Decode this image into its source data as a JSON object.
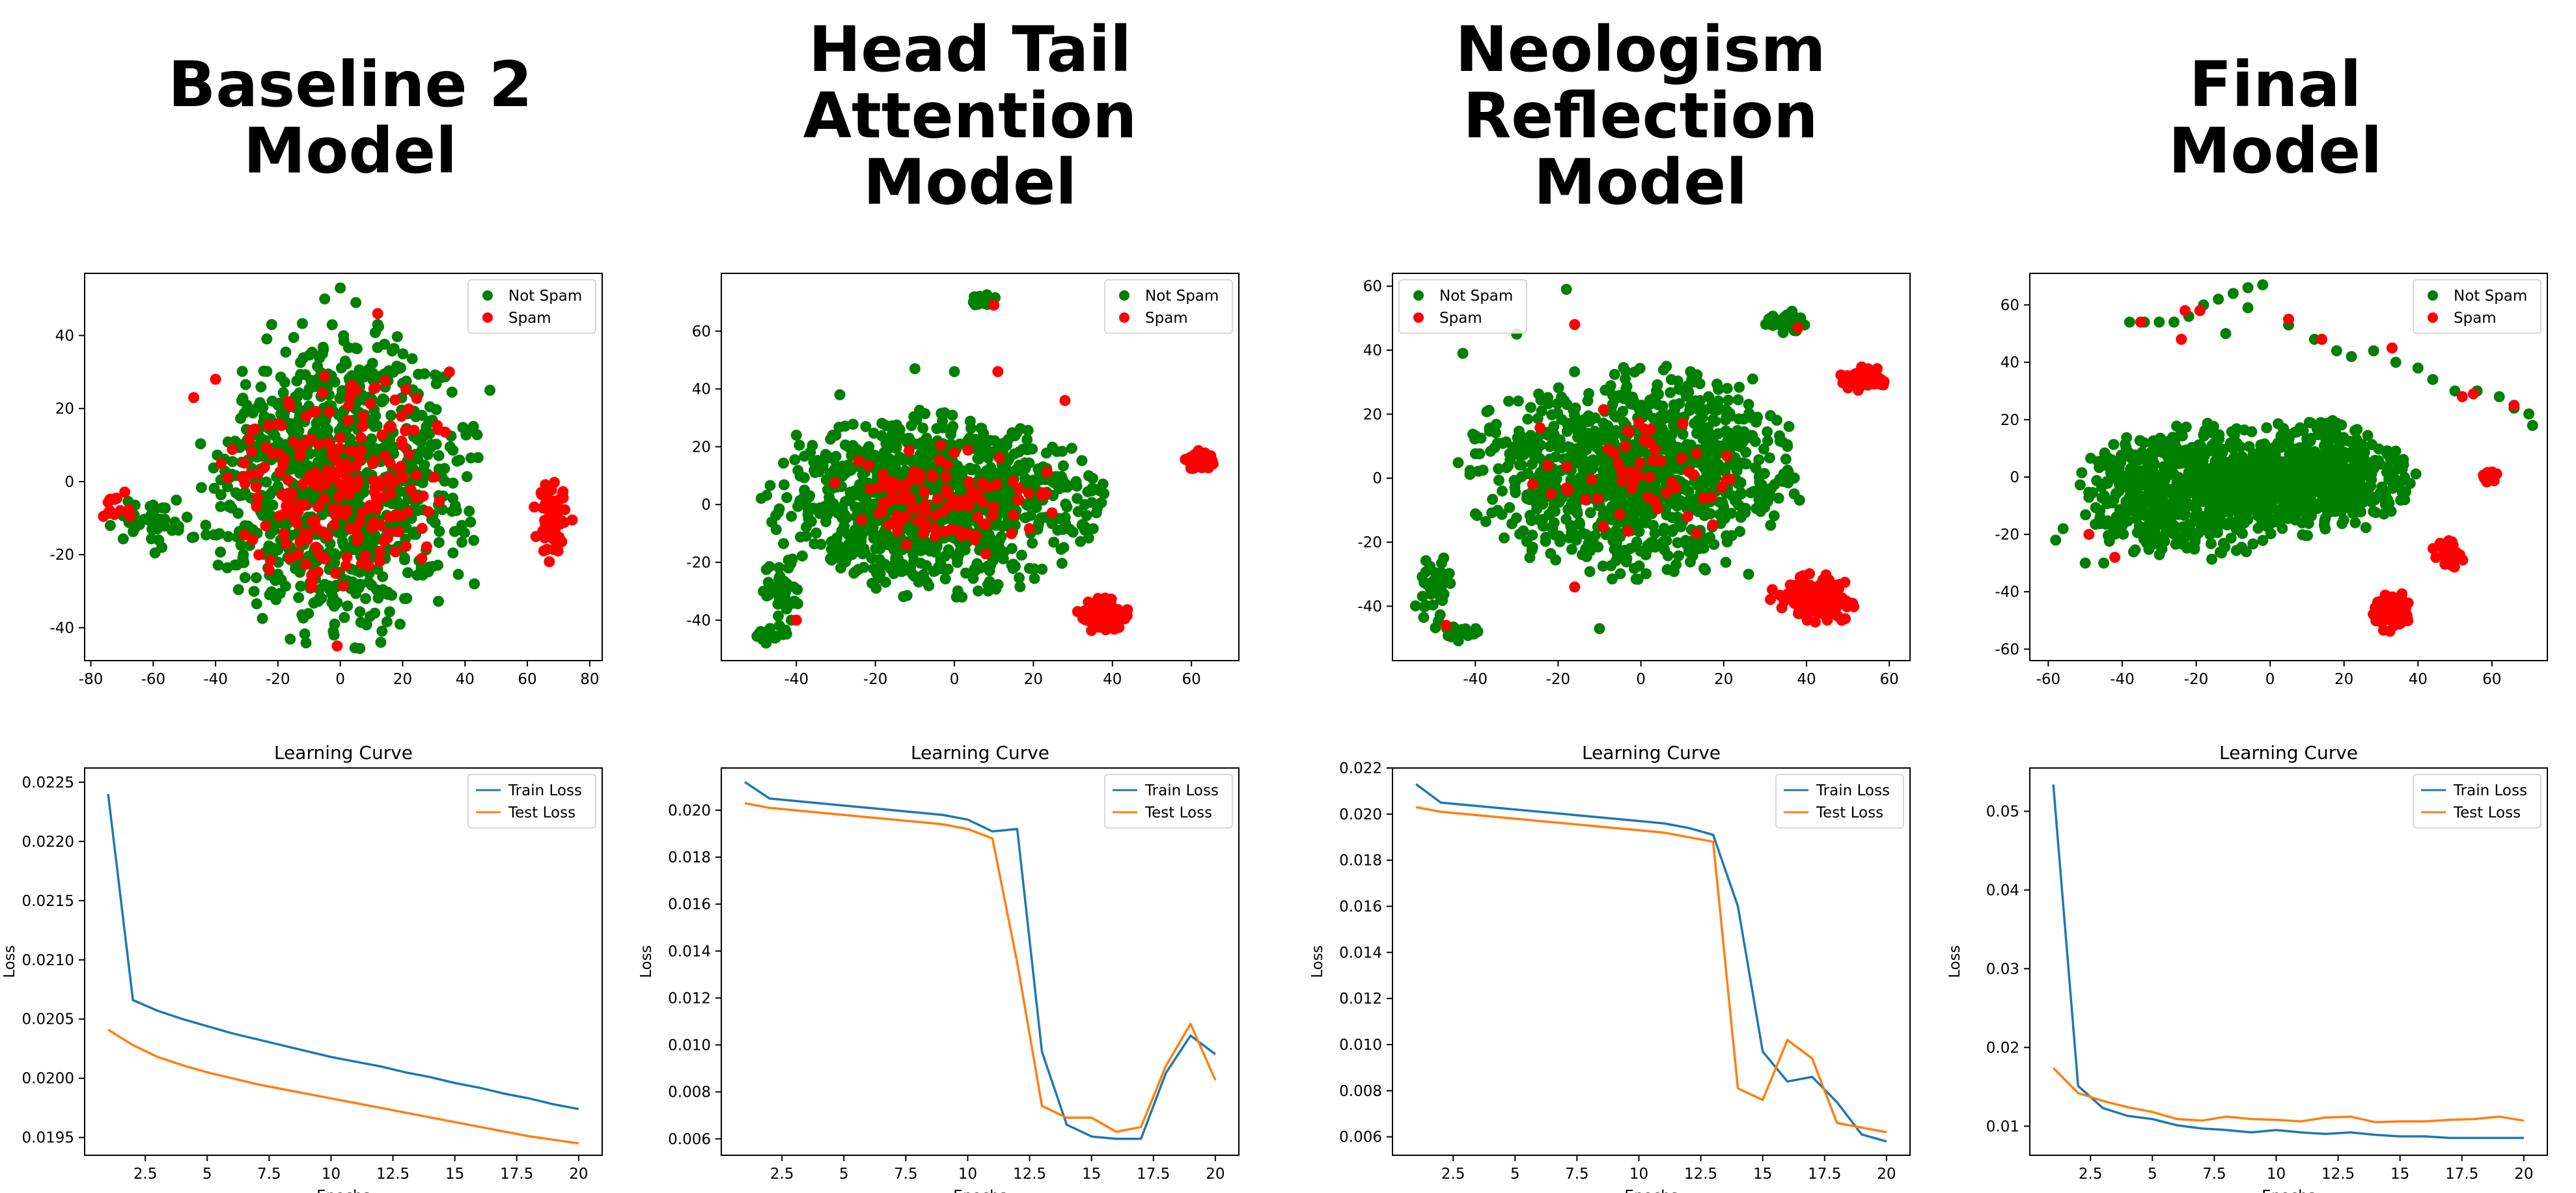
{
  "columns": [
    {
      "title_lines": [
        "Baseline 2",
        "Model"
      ]
    },
    {
      "title_lines": [
        "Head Tail",
        "Attention",
        "Model"
      ]
    },
    {
      "title_lines": [
        "Neologism",
        "Reflection",
        "Model"
      ]
    },
    {
      "title_lines": [
        "Final",
        "Model"
      ]
    }
  ],
  "colors": {
    "not_spam": "#008000",
    "spam": "#ff0000",
    "train_loss": "#1f77b4",
    "test_loss": "#ff7f0e"
  },
  "chart_data": [
    {
      "type": "scatter",
      "title": "",
      "xlim": [
        -82,
        84
      ],
      "ylim": [
        -49,
        57
      ],
      "xticks": [
        -80,
        -60,
        -40,
        -20,
        0,
        20,
        40,
        60,
        80
      ],
      "yticks": [
        -40,
        -20,
        0,
        20,
        40
      ],
      "legend_location": "upper right",
      "series": [
        {
          "name": "Not Spam",
          "color": "#008000",
          "clusters": [
            {
              "cx": 0,
              "cy": 0,
              "rx": 45,
              "ry": 45,
              "n": 900
            },
            {
              "cx": -60,
              "cy": -12,
              "rx": 14,
              "ry": 8,
              "n": 40
            }
          ],
          "points": [
            [
              0,
              53
            ],
            [
              -5,
              50
            ],
            [
              5,
              49
            ],
            [
              -22,
              43
            ],
            [
              43,
              -28
            ],
            [
              -2,
              -42
            ],
            [
              13,
              -44
            ],
            [
              48,
              25
            ]
          ]
        },
        {
          "name": "Spam",
          "color": "#ff0000",
          "clusters": [
            {
              "cx": 0,
              "cy": 0,
              "rx": 38,
              "ry": 30,
              "n": 230
            },
            {
              "cx": 68,
              "cy": -10,
              "rx": 7,
              "ry": 12,
              "n": 60
            },
            {
              "cx": -72,
              "cy": -6,
              "rx": 6,
              "ry": 7,
              "n": 14
            }
          ],
          "points": [
            [
              12,
              46
            ],
            [
              -1,
              -45
            ],
            [
              -47,
              23
            ],
            [
              35,
              30
            ],
            [
              -40,
              28
            ]
          ]
        }
      ]
    },
    {
      "type": "scatter",
      "title": "",
      "xlim": [
        -59,
        72
      ],
      "ylim": [
        -54,
        80
      ],
      "xticks": [
        -40,
        -20,
        0,
        20,
        40,
        60
      ],
      "yticks": [
        -40,
        -20,
        0,
        20,
        40,
        60
      ],
      "legend_location": "upper right",
      "series": [
        {
          "name": "Not Spam",
          "color": "#008000",
          "clusters": [
            {
              "cx": -5,
              "cy": 0,
              "rx": 43,
              "ry": 32,
              "n": 950
            },
            {
              "cx": 7,
              "cy": 71,
              "rx": 4,
              "ry": 2.5,
              "n": 30
            },
            {
              "cx": -44,
              "cy": -30,
              "rx": 6,
              "ry": 12,
              "n": 40
            },
            {
              "cx": -47,
              "cy": -45,
              "rx": 5,
              "ry": 3,
              "n": 20
            }
          ],
          "points": [
            [
              -10,
              47
            ],
            [
              0,
              46
            ],
            [
              -29,
              38
            ],
            [
              -40,
              24
            ]
          ]
        },
        {
          "name": "Spam",
          "color": "#ff0000",
          "clusters": [
            {
              "cx": -2,
              "cy": 2,
              "rx": 30,
              "ry": 20,
              "n": 110
            },
            {
              "cx": 37,
              "cy": -38,
              "rx": 7,
              "ry": 6,
              "n": 80
            },
            {
              "cx": 62,
              "cy": 15,
              "rx": 4,
              "ry": 4,
              "n": 60
            }
          ],
          "points": [
            [
              11,
              46
            ],
            [
              -40,
              -40
            ],
            [
              10,
              69
            ],
            [
              28,
              36
            ]
          ]
        }
      ]
    },
    {
      "type": "scatter",
      "title": "",
      "xlim": [
        -60,
        65
      ],
      "ylim": [
        -57,
        64
      ],
      "xticks": [
        -40,
        -20,
        0,
        20,
        40,
        60
      ],
      "yticks": [
        -40,
        -20,
        0,
        20,
        40,
        60
      ],
      "legend_location": "upper left",
      "series": [
        {
          "name": "Not Spam",
          "color": "#008000",
          "clusters": [
            {
              "cx": -2,
              "cy": 2,
              "rx": 42,
              "ry": 33,
              "n": 1000
            },
            {
              "cx": 35,
              "cy": 49,
              "rx": 5,
              "ry": 3.5,
              "n": 35
            },
            {
              "cx": -50,
              "cy": -35,
              "rx": 5,
              "ry": 13,
              "n": 45
            },
            {
              "cx": -43,
              "cy": -48,
              "rx": 5,
              "ry": 3,
              "n": 20
            }
          ],
          "points": [
            [
              -18,
              59
            ],
            [
              -43,
              39
            ],
            [
              -30,
              45
            ],
            [
              27,
              31
            ],
            [
              -10,
              -47
            ],
            [
              26,
              -30
            ]
          ]
        },
        {
          "name": "Spam",
          "color": "#ff0000",
          "clusters": [
            {
              "cx": -3,
              "cy": 0,
              "rx": 30,
              "ry": 22,
              "n": 60
            },
            {
              "cx": 42,
              "cy": -38,
              "rx": 11,
              "ry": 8,
              "n": 110
            },
            {
              "cx": 54,
              "cy": 31,
              "rx": 6,
              "ry": 4,
              "n": 50
            }
          ],
          "points": [
            [
              -16,
              48
            ],
            [
              -47,
              -46
            ],
            [
              38,
              47
            ],
            [
              -16,
              -34
            ]
          ]
        }
      ]
    },
    {
      "type": "scatter",
      "title": "",
      "xlim": [
        -65,
        75
      ],
      "ylim": [
        -64,
        71
      ],
      "xticks": [
        -60,
        -40,
        -20,
        0,
        20,
        40,
        60
      ],
      "yticks": [
        -60,
        -40,
        -20,
        0,
        20,
        40,
        60
      ],
      "legend_location": "upper right",
      "series": [
        {
          "name": "Not Spam",
          "color": "#008000",
          "clusters": [
            {
              "cx": -22,
              "cy": -5,
              "rx": 30,
              "ry": 24,
              "n": 650
            },
            {
              "cx": 12,
              "cy": 0,
              "rx": 28,
              "ry": 20,
              "n": 550
            }
          ],
          "points": [
            [
              -2,
              67
            ],
            [
              -6,
              66
            ],
            [
              -10,
              64
            ],
            [
              -14,
              62
            ],
            [
              -18,
              60
            ],
            [
              -22,
              56
            ],
            [
              -26,
              54
            ],
            [
              -30,
              54
            ],
            [
              -34,
              54
            ],
            [
              -38,
              54
            ],
            [
              -12,
              50
            ],
            [
              -6,
              59
            ],
            [
              5,
              53
            ],
            [
              12,
              48
            ],
            [
              18,
              44
            ],
            [
              22,
              42
            ],
            [
              28,
              44
            ],
            [
              34,
              40
            ],
            [
              40,
              38
            ],
            [
              44,
              34
            ],
            [
              50,
              30
            ],
            [
              56,
              30
            ],
            [
              62,
              28
            ],
            [
              66,
              24
            ],
            [
              70,
              22
            ],
            [
              71,
              18
            ],
            [
              -56,
              -18
            ],
            [
              -58,
              -22
            ],
            [
              -50,
              -30
            ],
            [
              -45,
              -30
            ]
          ]
        },
        {
          "name": "Spam",
          "color": "#ff0000",
          "clusters": [
            {
              "cx": 33,
              "cy": -47,
              "rx": 6,
              "ry": 7,
              "n": 80
            },
            {
              "cx": 48,
              "cy": -27,
              "rx": 5,
              "ry": 5,
              "n": 35
            },
            {
              "cx": 60,
              "cy": 0,
              "rx": 3,
              "ry": 3,
              "n": 20
            }
          ],
          "points": [
            [
              -19,
              58
            ],
            [
              -23,
              58
            ],
            [
              -35,
              54
            ],
            [
              -24,
              48
            ],
            [
              5,
              55
            ],
            [
              14,
              48
            ],
            [
              33,
              45
            ],
            [
              55,
              29
            ],
            [
              52,
              28
            ],
            [
              66,
              25
            ],
            [
              -42,
              -28
            ],
            [
              -49,
              -20
            ]
          ]
        }
      ]
    },
    {
      "type": "line",
      "title": "Learning Curve",
      "xlabel": "Epochs",
      "ylabel": "Loss",
      "xlim": [
        0.05,
        20.95
      ],
      "ylim": [
        0.01935,
        0.02262
      ],
      "xticks": [
        2.5,
        5.0,
        7.5,
        10.0,
        12.5,
        15.0,
        17.5,
        20.0
      ],
      "yticks": [
        0.0195,
        0.02,
        0.0205,
        0.021,
        0.0215,
        0.022,
        0.0225
      ],
      "ytick_labels": [
        "0.0195",
        "0.0200",
        "0.0205",
        "0.0210",
        "0.0215",
        "0.0220",
        "0.0225"
      ],
      "legend_location": "upper right",
      "x": [
        1,
        2,
        3,
        4,
        5,
        6,
        7,
        8,
        9,
        10,
        11,
        12,
        13,
        14,
        15,
        16,
        17,
        18,
        19,
        20
      ],
      "series": [
        {
          "name": "Train Loss",
          "color": "#1f77b4",
          "values": [
            0.0224,
            0.02066,
            0.02057,
            0.0205,
            0.02044,
            0.02038,
            0.02033,
            0.02028,
            0.02023,
            0.02018,
            0.02014,
            0.0201,
            0.02005,
            0.02001,
            0.01996,
            0.01992,
            0.01987,
            0.01983,
            0.01978,
            0.01974
          ]
        },
        {
          "name": "Test Loss",
          "color": "#ff7f0e",
          "values": [
            0.02041,
            0.02028,
            0.02018,
            0.02011,
            0.02005,
            0.02,
            0.01995,
            0.01991,
            0.01987,
            0.01983,
            0.01979,
            0.01975,
            0.01971,
            0.01967,
            0.01963,
            0.01959,
            0.01955,
            0.01951,
            0.01948,
            0.01945
          ]
        }
      ]
    },
    {
      "type": "line",
      "title": "Learning Curve",
      "xlabel": "Epochs",
      "ylabel": "Loss",
      "xlim": [
        0.05,
        20.95
      ],
      "ylim": [
        0.0053,
        0.0218
      ],
      "xticks": [
        2.5,
        5.0,
        7.5,
        10.0,
        12.5,
        15.0,
        17.5,
        20.0
      ],
      "yticks": [
        0.006,
        0.008,
        0.01,
        0.012,
        0.014,
        0.016,
        0.018,
        0.02
      ],
      "ytick_labels": [
        "0.006",
        "0.008",
        "0.010",
        "0.012",
        "0.014",
        "0.016",
        "0.018",
        "0.020"
      ],
      "legend_location": "upper right",
      "x": [
        1,
        2,
        3,
        4,
        5,
        6,
        7,
        8,
        9,
        10,
        11,
        12,
        13,
        14,
        15,
        16,
        17,
        18,
        19,
        20
      ],
      "series": [
        {
          "name": "Train Loss",
          "color": "#1f77b4",
          "values": [
            0.0212,
            0.0205,
            0.0204,
            0.0203,
            0.0202,
            0.0201,
            0.02,
            0.0199,
            0.0198,
            0.0196,
            0.0191,
            0.0192,
            0.0097,
            0.0066,
            0.0061,
            0.006,
            0.006,
            0.0088,
            0.0104,
            0.0096
          ]
        },
        {
          "name": "Test Loss",
          "color": "#ff7f0e",
          "values": [
            0.0203,
            0.0201,
            0.02,
            0.0199,
            0.0198,
            0.0197,
            0.0196,
            0.0195,
            0.0194,
            0.0192,
            0.0188,
            0.0135,
            0.0074,
            0.0069,
            0.0069,
            0.0063,
            0.0065,
            0.0091,
            0.0109,
            0.0085
          ]
        }
      ]
    },
    {
      "type": "line",
      "title": "Learning Curve",
      "xlabel": "Epochs",
      "ylabel": "Loss",
      "xlim": [
        0.05,
        20.95
      ],
      "ylim": [
        0.0052,
        0.022
      ],
      "xticks": [
        2.5,
        5.0,
        7.5,
        10.0,
        12.5,
        15.0,
        17.5,
        20.0
      ],
      "yticks": [
        0.006,
        0.008,
        0.01,
        0.012,
        0.014,
        0.016,
        0.018,
        0.02,
        0.022
      ],
      "ytick_labels": [
        "0.006",
        "0.008",
        "0.010",
        "0.012",
        "0.014",
        "0.016",
        "0.018",
        "0.020",
        "0.022"
      ],
      "legend_location": "upper right",
      "x": [
        1,
        2,
        3,
        4,
        5,
        6,
        7,
        8,
        9,
        10,
        11,
        12,
        13,
        14,
        15,
        16,
        17,
        18,
        19,
        20
      ],
      "series": [
        {
          "name": "Train Loss",
          "color": "#1f77b4",
          "values": [
            0.0213,
            0.0205,
            0.0204,
            0.0203,
            0.0202,
            0.0201,
            0.02,
            0.0199,
            0.0198,
            0.0197,
            0.0196,
            0.0194,
            0.0191,
            0.016,
            0.0097,
            0.0084,
            0.0086,
            0.0075,
            0.0061,
            0.0058
          ]
        },
        {
          "name": "Test Loss",
          "color": "#ff7f0e",
          "values": [
            0.0203,
            0.0201,
            0.02,
            0.0199,
            0.0198,
            0.0197,
            0.0196,
            0.0195,
            0.0194,
            0.0193,
            0.0192,
            0.019,
            0.0188,
            0.0081,
            0.0076,
            0.0102,
            0.0094,
            0.0066,
            0.0064,
            0.0062
          ]
        }
      ]
    },
    {
      "type": "line",
      "title": "Learning Curve",
      "xlabel": "Epochs",
      "ylabel": "Loss",
      "xlim": [
        0.05,
        20.95
      ],
      "ylim": [
        0.0063,
        0.0555
      ],
      "xticks": [
        2.5,
        5.0,
        7.5,
        10.0,
        12.5,
        15.0,
        17.5,
        20.0
      ],
      "yticks": [
        0.01,
        0.02,
        0.03,
        0.04,
        0.05
      ],
      "ytick_labels": [
        "0.01",
        "0.02",
        "0.03",
        "0.04",
        "0.05"
      ],
      "legend_location": "upper right",
      "x": [
        1,
        2,
        3,
        4,
        5,
        6,
        7,
        8,
        9,
        10,
        11,
        12,
        13,
        14,
        15,
        16,
        17,
        18,
        19,
        20
      ],
      "series": [
        {
          "name": "Train Loss",
          "color": "#1f77b4",
          "values": [
            0.0534,
            0.0151,
            0.0123,
            0.0113,
            0.0109,
            0.0101,
            0.0097,
            0.0095,
            0.0092,
            0.0095,
            0.0092,
            0.009,
            0.0092,
            0.0089,
            0.0087,
            0.0087,
            0.0085,
            0.0085,
            0.0085,
            0.0085
          ]
        },
        {
          "name": "Test Loss",
          "color": "#ff7f0e",
          "values": [
            0.0174,
            0.0142,
            0.0132,
            0.0124,
            0.0118,
            0.0109,
            0.0107,
            0.0112,
            0.0109,
            0.0108,
            0.0106,
            0.0111,
            0.0112,
            0.0105,
            0.0106,
            0.0106,
            0.0108,
            0.0109,
            0.0112,
            0.0107
          ]
        }
      ]
    }
  ]
}
